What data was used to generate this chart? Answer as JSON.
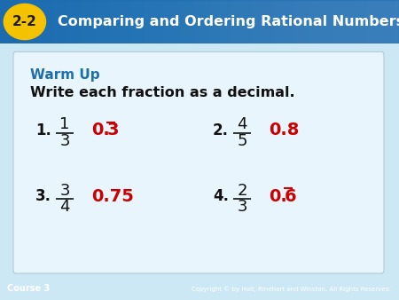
{
  "title_text": "2-2",
  "title_main": "Comparing and Ordering Rational Numbers",
  "header_bg_dark": "#1a5fa8",
  "header_bg_mid": "#2b7cc9",
  "header_bg_light": "#4a9fd4",
  "header_text_color": "#ffffff",
  "body_bg": "#cce8f4",
  "warm_up_color": "#1f6fa8",
  "warm_up_text": "Warm Up",
  "instruction_text": "Write each fraction as a decimal.",
  "instruction_color": "#111111",
  "answer_color": "#cc0000",
  "number_color": "#111111",
  "footer_bg": "#1a5fa8",
  "footer_left": "Course 3",
  "footer_right": "Copyright © by Holt, Rinehart and Winston. All Rights Reserved.",
  "footer_text_color": "#ffffff",
  "card_bg": "#e8f5fc",
  "problems": [
    {
      "num": "1.",
      "frac_top": "1",
      "frac_bot": "3",
      "answer": "0.3",
      "has_overline": true
    },
    {
      "num": "2.",
      "frac_top": "4",
      "frac_bot": "5",
      "answer": "0.8",
      "has_overline": false
    },
    {
      "num": "3.",
      "frac_top": "3",
      "frac_bot": "4",
      "answer": "0.75",
      "has_overline": false
    },
    {
      "num": "4.",
      "frac_top": "2",
      "frac_bot": "3",
      "answer": "0.6",
      "has_overline": true
    }
  ]
}
